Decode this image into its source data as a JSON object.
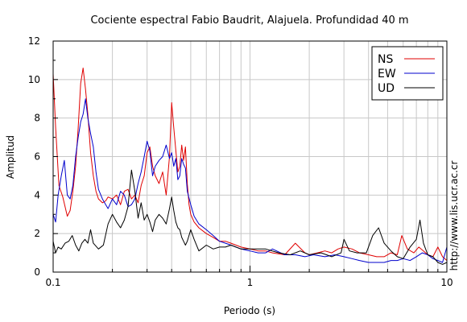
{
  "chart_data": {
    "type": "line",
    "title": "Cociente espectral Fabio Baudrit, Alajuela. Profundidad 40 m",
    "xlabel": "Periodo (s)",
    "ylabel": "Amplitud",
    "xscale": "log",
    "xlim": [
      0.1,
      10
    ],
    "ylim": [
      0,
      12
    ],
    "grid": true,
    "legend_position": "top-right",
    "x_ticks": [
      {
        "value": 0.1,
        "label": "0.1"
      },
      {
        "value": 1,
        "label": "1"
      },
      {
        "value": 10,
        "label": "10"
      }
    ],
    "y_ticks": [
      {
        "value": 0,
        "label": "0"
      },
      {
        "value": 2,
        "label": "2"
      },
      {
        "value": 4,
        "label": "4"
      },
      {
        "value": 6,
        "label": "6"
      },
      {
        "value": 8,
        "label": "8"
      },
      {
        "value": 10,
        "label": "10"
      },
      {
        "value": 12,
        "label": "12"
      }
    ],
    "series": [
      {
        "name": "NS",
        "color": "#e00000",
        "x": [
          0.1,
          0.103,
          0.107,
          0.112,
          0.118,
          0.122,
          0.126,
          0.13,
          0.134,
          0.138,
          0.142,
          0.146,
          0.15,
          0.155,
          0.16,
          0.165,
          0.17,
          0.178,
          0.185,
          0.19,
          0.2,
          0.21,
          0.22,
          0.23,
          0.24,
          0.25,
          0.26,
          0.27,
          0.28,
          0.29,
          0.3,
          0.31,
          0.32,
          0.33,
          0.345,
          0.36,
          0.375,
          0.39,
          0.4,
          0.41,
          0.42,
          0.43,
          0.44,
          0.45,
          0.46,
          0.47,
          0.48,
          0.49,
          0.5,
          0.52,
          0.55,
          0.6,
          0.65,
          0.7,
          0.75,
          0.8,
          0.9,
          1.0,
          1.1,
          1.2,
          1.3,
          1.5,
          1.7,
          1.9,
          2.0,
          2.2,
          2.4,
          2.6,
          2.8,
          3.0,
          3.3,
          3.6,
          4.0,
          4.4,
          4.8,
          5.2,
          5.6,
          5.9,
          6.3,
          6.8,
          7.2,
          7.6,
          8.0,
          8.5,
          9.0,
          9.5,
          10.0
        ],
        "values": [
          10.3,
          7.5,
          4.5,
          3.9,
          2.9,
          3.2,
          4.2,
          5.5,
          7.5,
          9.8,
          10.6,
          9.5,
          8.2,
          6.2,
          5.0,
          4.2,
          3.8,
          3.6,
          3.7,
          3.9,
          3.8,
          4.0,
          3.5,
          4.2,
          4.3,
          3.8,
          4.0,
          3.6,
          4.5,
          5.0,
          6.2,
          6.5,
          5.5,
          5.0,
          4.6,
          5.2,
          4.0,
          6.0,
          8.8,
          7.5,
          6.3,
          5.2,
          5.5,
          6.6,
          5.8,
          6.5,
          4.6,
          3.5,
          3.0,
          2.6,
          2.3,
          2.0,
          1.8,
          1.6,
          1.6,
          1.5,
          1.3,
          1.2,
          1.1,
          1.1,
          1.0,
          0.9,
          1.5,
          1.0,
          0.9,
          1.0,
          1.1,
          1.0,
          1.2,
          1.3,
          1.2,
          1.0,
          0.9,
          0.8,
          0.8,
          1.0,
          0.9,
          1.9,
          1.2,
          1.0,
          1.3,
          1.1,
          0.9,
          0.8,
          1.3,
          0.8,
          0.6
        ]
      },
      {
        "name": "EW",
        "color": "#0000cc",
        "x": [
          0.1,
          0.103,
          0.106,
          0.11,
          0.114,
          0.118,
          0.122,
          0.126,
          0.13,
          0.134,
          0.138,
          0.142,
          0.146,
          0.15,
          0.155,
          0.16,
          0.165,
          0.17,
          0.178,
          0.185,
          0.19,
          0.2,
          0.21,
          0.22,
          0.23,
          0.24,
          0.25,
          0.26,
          0.27,
          0.28,
          0.29,
          0.3,
          0.31,
          0.32,
          0.33,
          0.345,
          0.36,
          0.375,
          0.39,
          0.4,
          0.41,
          0.42,
          0.43,
          0.44,
          0.45,
          0.46,
          0.47,
          0.48,
          0.5,
          0.52,
          0.55,
          0.6,
          0.65,
          0.7,
          0.75,
          0.8,
          0.9,
          1.0,
          1.1,
          1.2,
          1.3,
          1.5,
          1.7,
          1.9,
          2.1,
          2.4,
          2.7,
          3.0,
          3.3,
          3.6,
          4.0,
          4.4,
          4.8,
          5.2,
          5.6,
          6.0,
          6.5,
          7.0,
          7.5,
          8.0,
          8.5,
          9.0,
          9.5,
          10.0
        ],
        "values": [
          3.0,
          2.6,
          4.0,
          5.0,
          5.8,
          4.0,
          3.8,
          4.5,
          6.0,
          7.0,
          7.8,
          8.2,
          9.0,
          8.0,
          7.2,
          6.5,
          5.2,
          4.3,
          3.8,
          3.5,
          3.3,
          3.8,
          3.5,
          4.2,
          4.0,
          3.4,
          3.5,
          3.8,
          4.6,
          5.2,
          6.0,
          6.8,
          6.3,
          5.0,
          5.5,
          5.8,
          6.0,
          6.6,
          5.9,
          6.2,
          5.5,
          5.9,
          4.8,
          5.0,
          5.9,
          5.6,
          5.4,
          4.2,
          3.5,
          2.9,
          2.5,
          2.2,
          1.9,
          1.6,
          1.5,
          1.4,
          1.2,
          1.1,
          1.0,
          1.0,
          1.2,
          0.9,
          0.9,
          0.8,
          0.9,
          0.8,
          0.9,
          0.8,
          0.7,
          0.6,
          0.5,
          0.5,
          0.5,
          0.6,
          0.6,
          0.7,
          0.6,
          0.8,
          1.0,
          0.9,
          0.7,
          0.6,
          0.5,
          1.3
        ]
      },
      {
        "name": "UD",
        "color": "#000000",
        "x": [
          0.1,
          0.103,
          0.106,
          0.11,
          0.115,
          0.12,
          0.125,
          0.13,
          0.135,
          0.14,
          0.145,
          0.15,
          0.155,
          0.16,
          0.17,
          0.18,
          0.19,
          0.2,
          0.21,
          0.22,
          0.23,
          0.24,
          0.25,
          0.26,
          0.27,
          0.28,
          0.29,
          0.3,
          0.31,
          0.32,
          0.33,
          0.345,
          0.36,
          0.375,
          0.39,
          0.4,
          0.41,
          0.42,
          0.43,
          0.44,
          0.45,
          0.46,
          0.47,
          0.48,
          0.5,
          0.52,
          0.55,
          0.6,
          0.65,
          0.7,
          0.75,
          0.8,
          0.9,
          1.0,
          1.2,
          1.4,
          1.6,
          1.8,
          2.0,
          2.3,
          2.6,
          2.9,
          3.0,
          3.2,
          3.5,
          3.9,
          4.2,
          4.5,
          4.8,
          5.2,
          5.6,
          6.0,
          6.5,
          7.0,
          7.3,
          7.6,
          8.0,
          8.5,
          9.0,
          9.5,
          10.0
        ],
        "values": [
          1.6,
          1.0,
          1.3,
          1.2,
          1.5,
          1.6,
          1.9,
          1.4,
          1.1,
          1.5,
          1.7,
          1.5,
          2.2,
          1.5,
          1.2,
          1.4,
          2.5,
          3.0,
          2.6,
          2.3,
          2.7,
          3.4,
          5.3,
          4.2,
          2.8,
          3.6,
          2.7,
          3.0,
          2.6,
          2.1,
          2.7,
          3.0,
          2.8,
          2.5,
          3.3,
          3.9,
          3.2,
          2.6,
          2.3,
          2.2,
          1.8,
          1.6,
          1.4,
          1.6,
          2.2,
          1.7,
          1.1,
          1.4,
          1.2,
          1.3,
          1.3,
          1.4,
          1.2,
          1.2,
          1.2,
          1.0,
          0.9,
          1.1,
          0.9,
          1.0,
          0.8,
          1.0,
          1.7,
          1.1,
          1.0,
          1.0,
          1.9,
          2.3,
          1.5,
          1.1,
          0.8,
          0.7,
          1.3,
          1.7,
          2.7,
          1.5,
          0.9,
          0.8,
          0.5,
          0.4,
          0.5
        ]
      }
    ]
  },
  "side_label": "http://www.lis.ucr.ac.cr"
}
